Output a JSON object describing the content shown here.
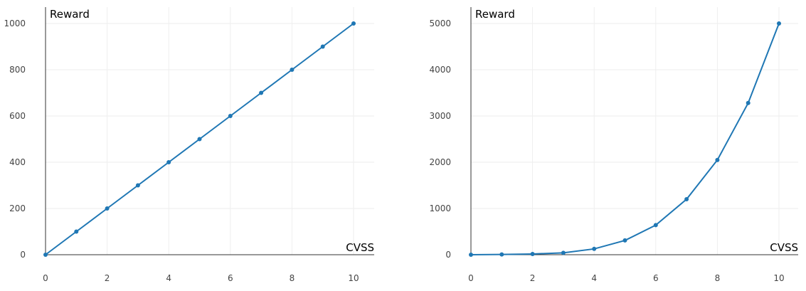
{
  "chart_data": [
    {
      "type": "line",
      "xlabel": "CVSS",
      "ylabel": "Reward",
      "xlim": [
        0,
        10
      ],
      "ylim": [
        0,
        1000
      ],
      "xticks": [
        0,
        2,
        4,
        6,
        8,
        10
      ],
      "yticks": [
        0,
        200,
        400,
        600,
        800,
        1000
      ],
      "grid": true,
      "color": "#1f77b4",
      "series": [
        {
          "x": [
            0,
            1,
            2,
            3,
            4,
            5,
            6,
            7,
            8,
            9,
            10
          ],
          "values": [
            0,
            100,
            200,
            300,
            400,
            500,
            600,
            700,
            800,
            900,
            1000
          ]
        }
      ]
    },
    {
      "type": "line",
      "xlabel": "CVSS",
      "ylabel": "Reward",
      "xlim": [
        0,
        10
      ],
      "ylim": [
        0,
        5000
      ],
      "xticks": [
        0,
        2,
        4,
        6,
        8,
        10
      ],
      "yticks": [
        0,
        1000,
        2000,
        3000,
        4000,
        5000
      ],
      "grid": true,
      "color": "#1f77b4",
      "series": [
        {
          "x": [
            0,
            1,
            2,
            3,
            4,
            5,
            6,
            7,
            8,
            9,
            10
          ],
          "values": [
            0,
            5,
            16,
            41,
            126,
            309,
            640,
            1200,
            2048,
            3280,
            5000
          ]
        }
      ]
    }
  ]
}
